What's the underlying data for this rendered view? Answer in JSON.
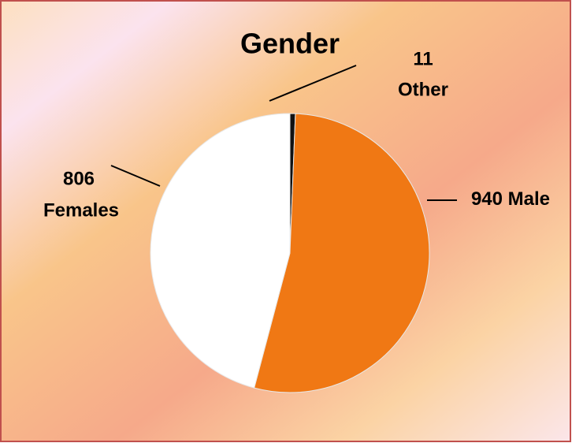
{
  "chart_data": {
    "type": "pie",
    "title": "Gender",
    "categories": [
      "Other",
      "Male",
      "Females"
    ],
    "values": [
      11,
      940,
      806
    ],
    "colors": [
      "#111111",
      "#f07814",
      "#ffffff"
    ]
  }
}
